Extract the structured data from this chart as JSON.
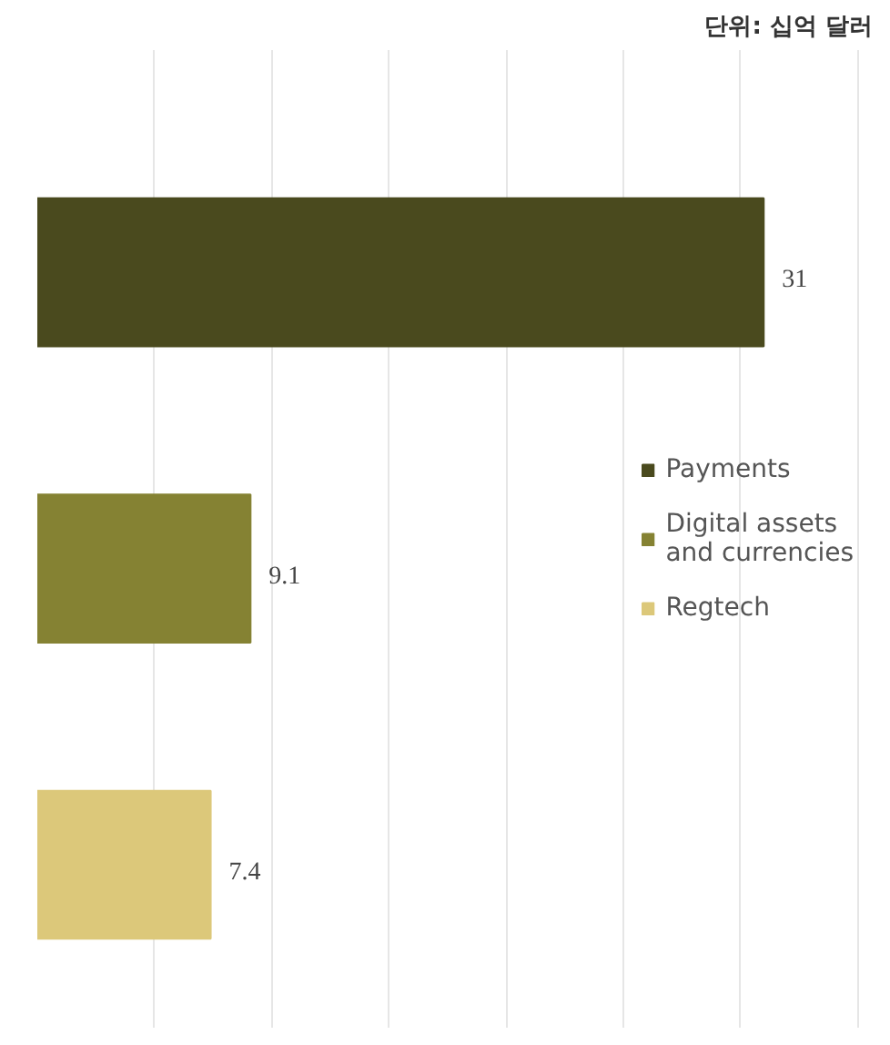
{
  "chart_data": {
    "type": "bar",
    "orientation": "horizontal",
    "stacked": true,
    "subtitle": "단위: 십억 달러",
    "categories": [
      null,
      null,
      null
    ],
    "series": [
      {
        "name": "Payments",
        "color": "#4a4a1e",
        "values": [
          31,
          null,
          null
        ]
      },
      {
        "name": "Digital assets and currencies",
        "color": "#858233",
        "values": [
          null,
          9.1,
          null
        ]
      },
      {
        "name": "Regtech",
        "color": "#dcc87a",
        "values": [
          null,
          null,
          7.4
        ]
      }
    ],
    "grid": "x",
    "tick_labels": false,
    "data_labels": true,
    "legend": "right"
  }
}
